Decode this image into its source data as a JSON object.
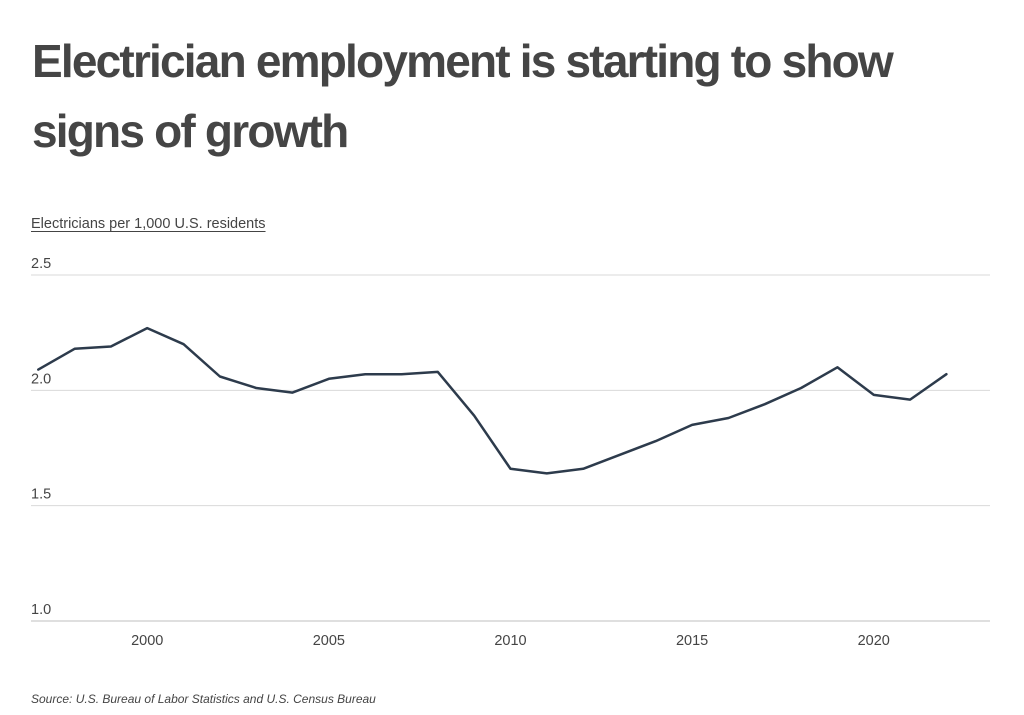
{
  "chart_data": {
    "type": "line",
    "title": "Electrician employment is starting to show signs of growth",
    "ylabel": "Electricians per 1,000 U.S. residents",
    "xlabel": "",
    "source": "Source: U.S. Bureau of Labor Statistics and U.S. Census Bureau",
    "x": [
      1997,
      1998,
      1999,
      2000,
      2001,
      2002,
      2003,
      2004,
      2005,
      2006,
      2007,
      2008,
      2009,
      2010,
      2011,
      2012,
      2013,
      2014,
      2015,
      2016,
      2017,
      2018,
      2019,
      2020,
      2021,
      2022
    ],
    "series": [
      {
        "values": [
          2.09,
          2.18,
          2.19,
          2.27,
          2.2,
          2.06,
          2.01,
          1.99,
          2.05,
          2.07,
          2.07,
          2.08,
          1.89,
          1.66,
          1.64,
          1.66,
          1.72,
          1.78,
          1.85,
          1.88,
          1.94,
          2.01,
          2.1,
          1.98,
          1.96,
          2.07
        ]
      }
    ],
    "ylim": [
      1.0,
      2.5
    ],
    "xlim": [
      1996.8,
      2023.2
    ],
    "y_ticks": [
      {
        "value": 2.5,
        "label": "2.5"
      },
      {
        "value": 2.0,
        "label": "2.0"
      },
      {
        "value": 1.5,
        "label": "1.5"
      },
      {
        "value": 1.0,
        "label": "1.0"
      }
    ],
    "x_ticks": [
      {
        "value": 2000,
        "label": "2000"
      },
      {
        "value": 2005,
        "label": "2005"
      },
      {
        "value": 2010,
        "label": "2010"
      },
      {
        "value": 2015,
        "label": "2015"
      },
      {
        "value": 2020,
        "label": "2020"
      }
    ],
    "grid": true,
    "line_color": "#2d3b4c",
    "grid_color": "#d9d9d9"
  }
}
